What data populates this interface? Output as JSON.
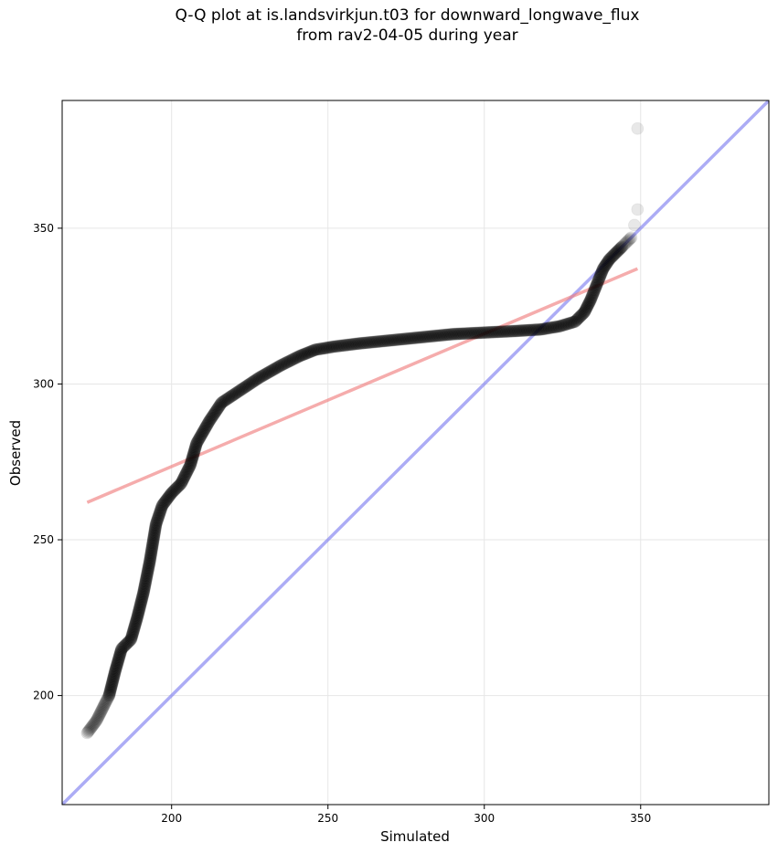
{
  "chart_data": {
    "type": "scatter",
    "title_lines": [
      "Q-Q plot at is.landsvirkjun.t03 for downward_longwave_flux",
      "from rav2-04-05 during year"
    ],
    "xlabel": "Simulated",
    "ylabel": "Observed",
    "xlim": [
      165,
      391
    ],
    "ylim": [
      165,
      391
    ],
    "xticks": [
      200,
      250,
      300,
      350
    ],
    "yticks": [
      200,
      250,
      300,
      350
    ],
    "grid": true,
    "colors": {
      "points": "#000000",
      "fit_line": "#f08080",
      "identity_line": "#8080f0",
      "grid": "#e6e6e6"
    },
    "quantile_curve": [
      [
        173,
        188
      ],
      [
        176,
        192
      ],
      [
        178,
        196
      ],
      [
        180,
        200
      ],
      [
        182,
        208
      ],
      [
        184,
        215
      ],
      [
        187,
        218
      ],
      [
        189,
        225
      ],
      [
        191,
        233
      ],
      [
        193,
        243
      ],
      [
        195,
        255
      ],
      [
        197,
        261
      ],
      [
        200,
        265
      ],
      [
        203,
        268
      ],
      [
        206,
        274
      ],
      [
        208,
        281
      ],
      [
        212,
        288
      ],
      [
        216,
        294
      ],
      [
        222,
        298
      ],
      [
        228,
        302
      ],
      [
        235,
        306
      ],
      [
        241,
        309
      ],
      [
        246,
        311
      ],
      [
        252,
        312
      ],
      [
        260,
        313
      ],
      [
        270,
        314
      ],
      [
        280,
        315
      ],
      [
        290,
        316
      ],
      [
        300,
        316.5
      ],
      [
        310,
        317
      ],
      [
        318,
        317.5
      ],
      [
        324,
        318.5
      ],
      [
        329,
        320
      ],
      [
        332,
        323
      ],
      [
        334,
        327
      ],
      [
        336,
        332
      ],
      [
        338,
        337
      ],
      [
        340,
        340
      ],
      [
        342,
        342
      ],
      [
        345,
        345
      ],
      [
        347,
        347
      ]
    ],
    "outliers": [
      [
        348,
        351
      ],
      [
        349,
        356
      ],
      [
        349,
        382
      ]
    ],
    "fit_line": {
      "x": [
        173,
        349
      ],
      "y": [
        262,
        337
      ]
    },
    "identity_line": {
      "x": [
        165,
        391
      ],
      "y": [
        165,
        391
      ]
    }
  }
}
